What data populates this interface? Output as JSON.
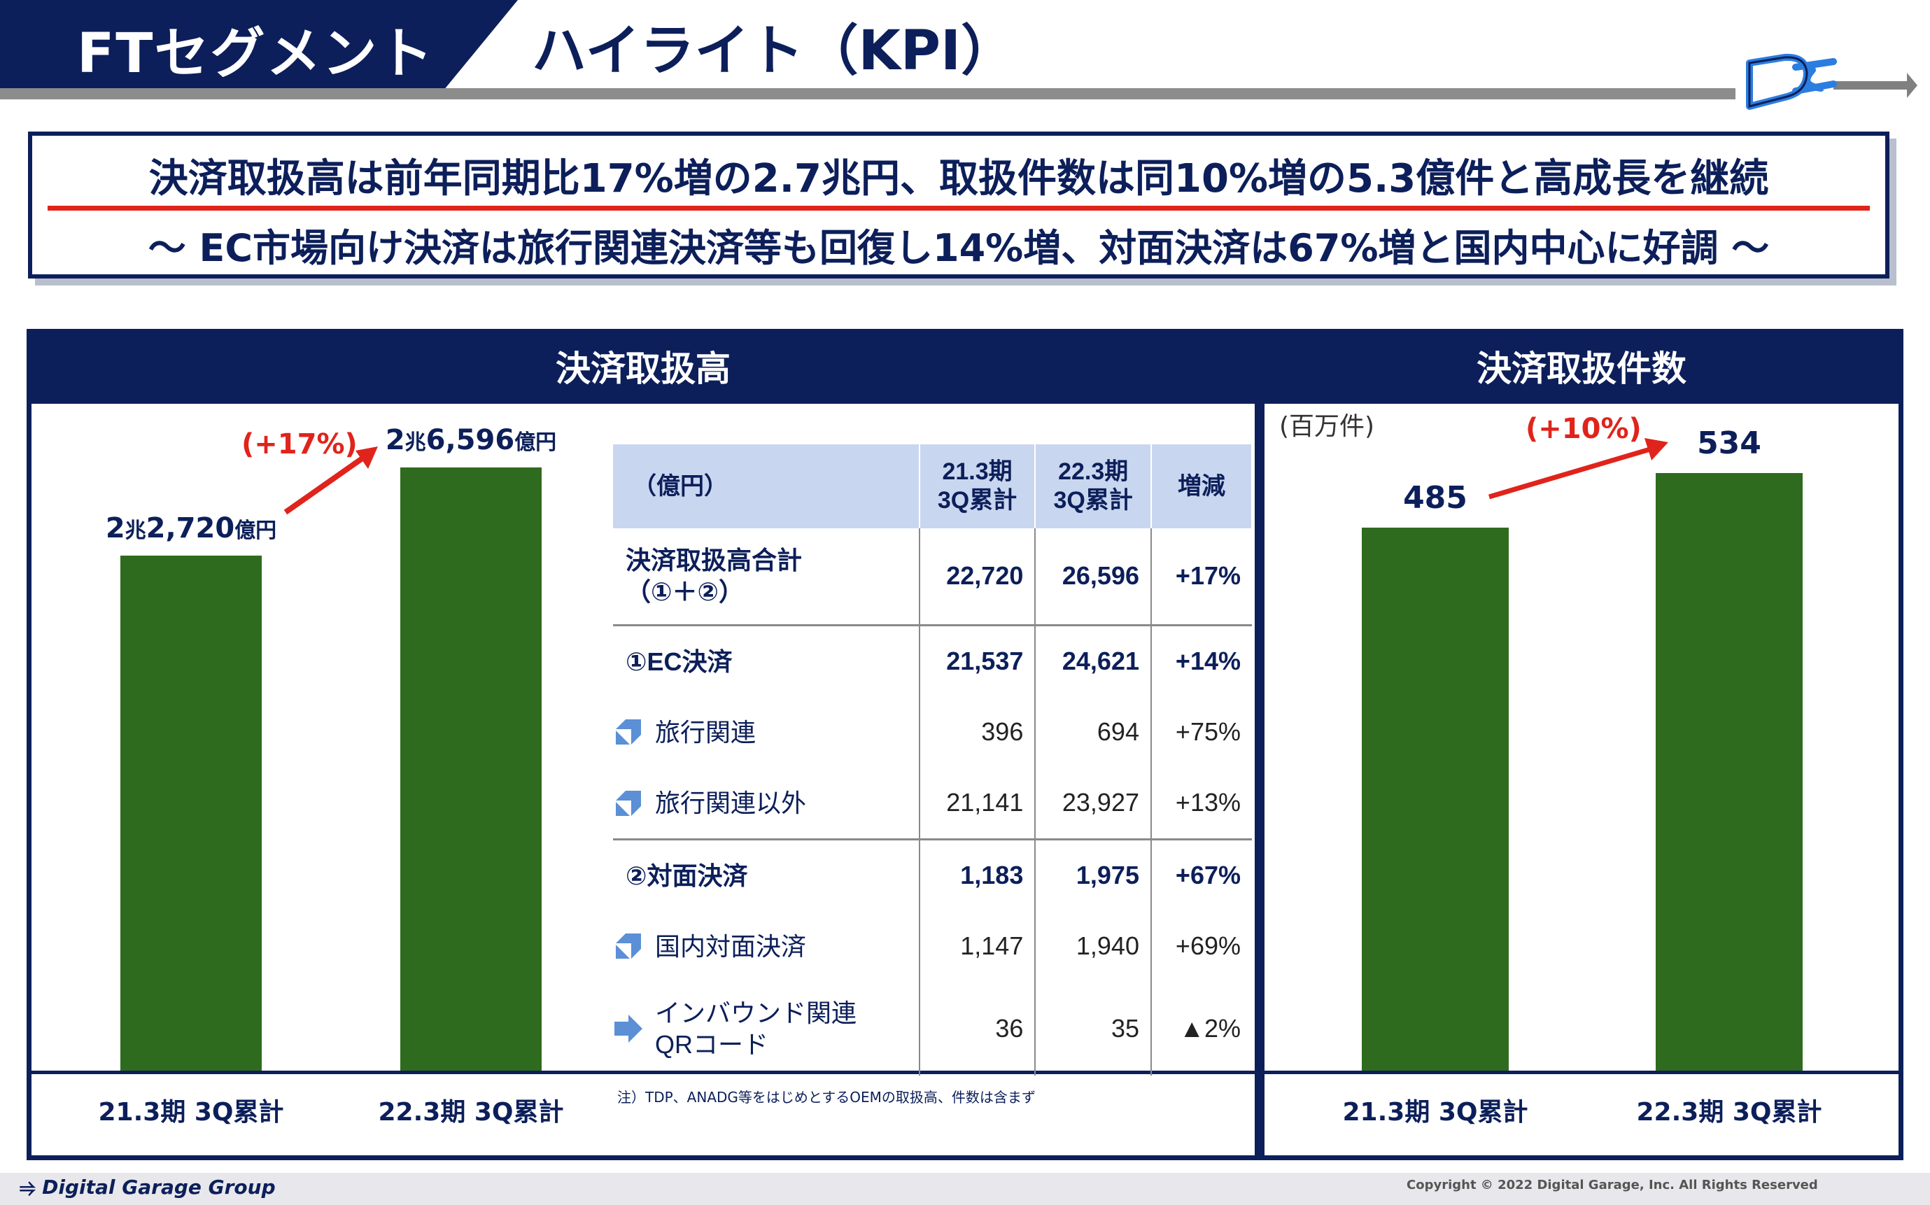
{
  "header": {
    "segment": "FTセグメント",
    "title": "ハイライト（KPI）"
  },
  "headline": {
    "main": "決済取扱高は前年同期比17%増の2.7兆円、取扱件数は同10%増の5.3億件と高成長を継続",
    "sub": "～ EC市場向け決済は旅行関連決済等も回復し14%増、対面決済は67%増と国内中心に好調 ～"
  },
  "colors": {
    "navy": "#0c1f5a",
    "bar_green": "#2f6b1e",
    "accent_red": "#e0241b",
    "table_header": "#c9d6ef"
  },
  "chart_data": [
    {
      "type": "bar",
      "title": "決済取扱高",
      "categories": [
        "21.3期 3Q累計",
        "22.3期 3Q累計"
      ],
      "values": [
        22720,
        26596
      ],
      "value_labels": [
        "2兆2,720億円",
        "2兆6,596億円"
      ],
      "annotation": "(+17%)",
      "ylim": [
        0,
        26596
      ]
    },
    {
      "type": "bar",
      "title": "決済取扱件数",
      "unit": "(百万件)",
      "categories": [
        "21.3期 3Q累計",
        "22.3期 3Q累計"
      ],
      "values": [
        485,
        534
      ],
      "value_labels": [
        "485",
        "534"
      ],
      "annotation": "(+10%)",
      "ylim": [
        0,
        534
      ]
    }
  ],
  "table": {
    "headers": [
      "（億円）",
      "21.3期\n3Q累計",
      "22.3期\n3Q累計",
      "増減"
    ],
    "rows": [
      {
        "label": "決済取扱高合計\n（①＋②）",
        "v1": "22,720",
        "v2": "26,596",
        "chg": "+17%",
        "style": "main",
        "icon": "",
        "sep": false
      },
      {
        "label": "①EC決済",
        "v1": "21,537",
        "v2": "24,621",
        "chg": "+14%",
        "style": "main",
        "icon": "",
        "sep": true
      },
      {
        "label": "旅行関連",
        "v1": "396",
        "v2": "694",
        "chg": "+75%",
        "style": "sub",
        "icon": "arrow-up-right-icon",
        "sep": false
      },
      {
        "label": "旅行関連以外",
        "v1": "21,141",
        "v2": "23,927",
        "chg": "+13%",
        "style": "sub",
        "icon": "arrow-up-right-icon",
        "sep": false
      },
      {
        "label": "②対面決済",
        "v1": "1,183",
        "v2": "1,975",
        "chg": "+67%",
        "style": "main",
        "icon": "",
        "sep": true
      },
      {
        "label": "国内対面決済",
        "v1": "1,147",
        "v2": "1,940",
        "chg": "+69%",
        "style": "sub",
        "icon": "arrow-up-right-icon",
        "sep": false
      },
      {
        "label": "インバウンド関連\nQRコード",
        "v1": "36",
        "v2": "35",
        "chg": "▲2%",
        "style": "sub",
        "icon": "arrow-right-icon",
        "sep": false
      }
    ]
  },
  "footnote": "注）TDP、ANADG等をはじめとするOEMの取扱高、件数は含まず",
  "footer": {
    "brand": "Digital Garage Group",
    "copyright": "Copyright © 2022 Digital Garage, Inc. All Rights Reserved"
  }
}
